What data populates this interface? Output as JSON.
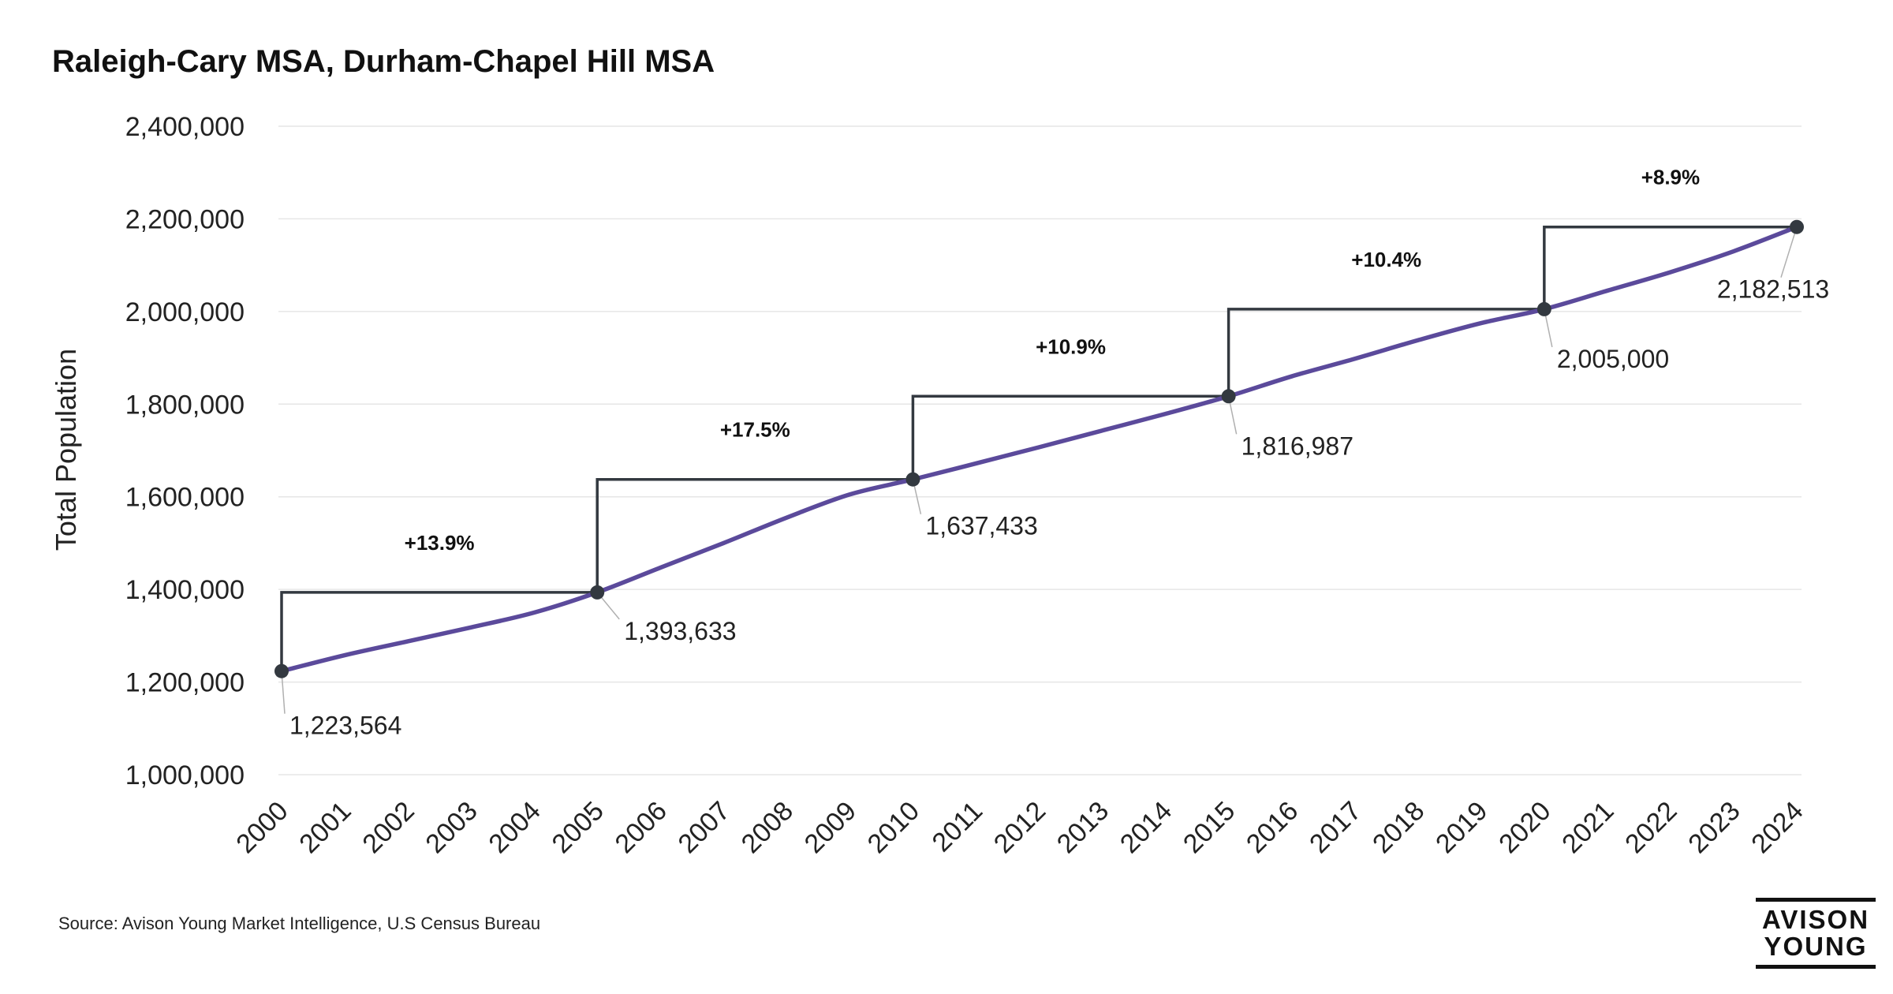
{
  "chart_data": {
    "type": "line",
    "title": "Raleigh-Cary MSA, Durham-Chapel Hill MSA",
    "xlabel": "",
    "ylabel": "Total Population",
    "ylim": [
      1000000,
      2400000
    ],
    "yticks": [
      1000000,
      1200000,
      1400000,
      1600000,
      1800000,
      2000000,
      2200000,
      2400000
    ],
    "ytick_labels": [
      "1,000,000",
      "1,200,000",
      "1,400,000",
      "1,600,000",
      "1,800,000",
      "2,000,000",
      "2,200,000",
      "2,400,000"
    ],
    "x": [
      2000,
      2001,
      2002,
      2003,
      2004,
      2005,
      2006,
      2007,
      2008,
      2009,
      2010,
      2011,
      2012,
      2013,
      2014,
      2015,
      2016,
      2017,
      2018,
      2019,
      2020,
      2021,
      2022,
      2023,
      2024
    ],
    "xtick_labels": [
      "2000",
      "2001",
      "2002",
      "2003",
      "2004",
      "2005",
      "2006",
      "2007",
      "2008",
      "2009",
      "2010",
      "2011",
      "2012",
      "2013",
      "2014",
      "2015",
      "2016",
      "2017",
      "2018",
      "2019",
      "2020",
      "2021",
      "2022",
      "2023",
      "2024"
    ],
    "series": [
      {
        "name": "Total Population",
        "color": "#5b4a9b",
        "values": [
          1223564,
          1258000,
          1288000,
          1318000,
          1350000,
          1393633,
          1447000,
          1500000,
          1555000,
          1605000,
          1637433,
          1672000,
          1707000,
          1743000,
          1779000,
          1816987,
          1860000,
          1898000,
          1938000,
          1975000,
          2005000,
          2045000,
          2085000,
          2130000,
          2182513
        ]
      }
    ],
    "labeled_points": [
      {
        "year": 2000,
        "value": 1223564,
        "label": "1,223,564"
      },
      {
        "year": 2005,
        "value": 1393633,
        "label": "1,393,633"
      },
      {
        "year": 2010,
        "value": 1637433,
        "label": "1,637,433"
      },
      {
        "year": 2015,
        "value": 1816987,
        "label": "1,816,987"
      },
      {
        "year": 2020,
        "value": 2005000,
        "label": "2,005,000"
      },
      {
        "year": 2024,
        "value": 2182513,
        "label": "2,182,513"
      }
    ],
    "growth_annotations": [
      {
        "from_year": 2000,
        "to_year": 2005,
        "label": "+13.9%"
      },
      {
        "from_year": 2005,
        "to_year": 2010,
        "label": "+17.5%"
      },
      {
        "from_year": 2010,
        "to_year": 2015,
        "label": "+10.9%"
      },
      {
        "from_year": 2015,
        "to_year": 2020,
        "label": "+10.4%"
      },
      {
        "from_year": 2020,
        "to_year": 2024,
        "label": "+8.9%"
      }
    ],
    "grid": true,
    "legend": "none",
    "colors": {
      "line": "#5b4a9b",
      "markers": "#333940",
      "steps": "#333940",
      "grid": "#e6e6e6"
    }
  },
  "source": "Source: Avison Young Market Intelligence, U.S Census Bureau",
  "logo": {
    "line1": "AVISON",
    "line2": "YOUNG"
  }
}
